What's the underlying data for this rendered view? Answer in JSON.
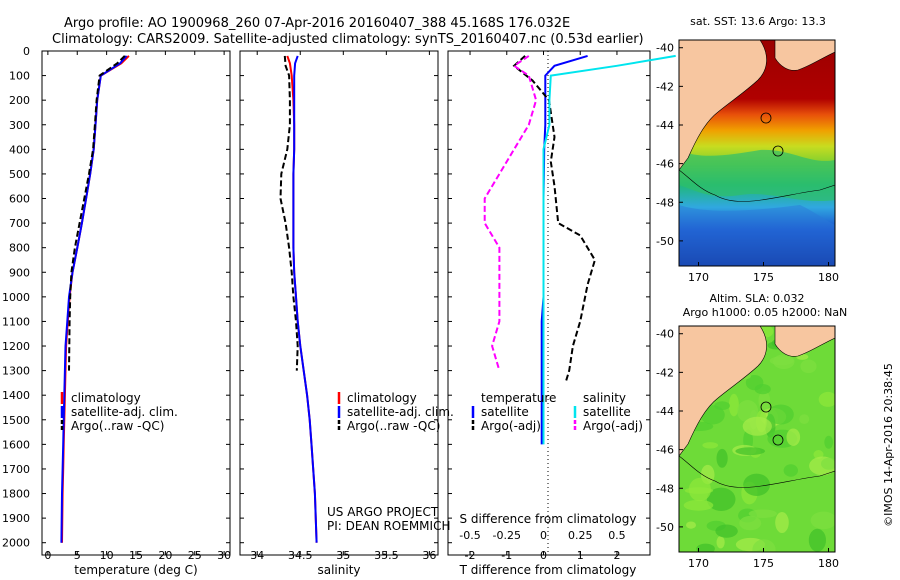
{
  "title": {
    "line1": "Argo profile: AO 1900968_260 07-Apr-2016 20160407_388 45.168S 176.032E",
    "line2": "Climatology: CARS2009. Satellite-adjusted climatology: synTS_20160407.nc (0.53d earlier)"
  },
  "colors": {
    "clim": "#ff0000",
    "sat": "#0000ff",
    "argo": "#000000",
    "sal_sat": "#00e5ee",
    "sal_argo": "#ff00ff",
    "land": "#f7c6a0"
  },
  "credits": {
    "project": "US ARGO PROJECT",
    "pi": "PI: DEAN ROEMMICH",
    "imos": "©IMOS 14-Apr-2016 20:38:45"
  },
  "chart_data": [
    {
      "type": "line",
      "id": "temperature",
      "xlabel": "temperature (deg C)",
      "ylabel": "",
      "xlim": [
        -1,
        31
      ],
      "ylim": [
        2050,
        0
      ],
      "xticks": [
        "0",
        "5",
        "10",
        "15",
        "20",
        "25",
        "30"
      ],
      "yticks": [
        "0",
        "100",
        "200",
        "300",
        "400",
        "500",
        "600",
        "700",
        "800",
        "900",
        "1000",
        "1100",
        "1200",
        "1300",
        "1400",
        "1500",
        "1600",
        "1700",
        "1800",
        "1900",
        "2000"
      ],
      "legend": [
        "climatology",
        "satellite-adj. clim.",
        "Argo(..raw -QC)"
      ],
      "series": [
        {
          "name": "climatology",
          "color": "#ff0000",
          "x": [
            13.8,
            12.5,
            9.0,
            8.4,
            8.1,
            7.8,
            7.2,
            6.5,
            5.8,
            5.0,
            4.2,
            3.7,
            3.4,
            3.1,
            3.0,
            2.9,
            2.8,
            2.7,
            2.6,
            2.5,
            2.4
          ],
          "y": [
            20,
            50,
            100,
            200,
            300,
            400,
            500,
            600,
            700,
            800,
            900,
            1000,
            1100,
            1200,
            1300,
            1400,
            1500,
            1600,
            1700,
            1800,
            2000
          ]
        },
        {
          "name": "satellite-adj. clim.",
          "color": "#0000ff",
          "x": [
            13.4,
            12.3,
            9.0,
            8.4,
            8.1,
            7.8,
            7.2,
            6.5,
            5.8,
            5.0,
            4.2,
            3.6,
            3.3,
            3.0,
            2.9,
            2.8,
            2.7,
            2.6,
            2.5,
            2.4,
            2.3
          ],
          "y": [
            20,
            50,
            100,
            200,
            300,
            400,
            500,
            600,
            700,
            800,
            900,
            1000,
            1100,
            1200,
            1300,
            1400,
            1500,
            1600,
            1700,
            1800,
            2000
          ]
        },
        {
          "name": "Argo(..raw -QC)",
          "color": "#000000",
          "dash": true,
          "x": [
            13.1,
            11.8,
            8.8,
            8.3,
            8.0,
            7.7,
            7.0,
            6.2,
            5.4,
            4.6,
            4.0,
            3.8,
            3.7,
            3.6
          ],
          "y": [
            20,
            50,
            100,
            200,
            300,
            400,
            500,
            600,
            700,
            800,
            900,
            1000,
            1100,
            1300
          ]
        }
      ]
    },
    {
      "type": "line",
      "id": "salinity",
      "xlabel": "salinity",
      "ylabel": "",
      "xlim": [
        33.8,
        36.1
      ],
      "ylim": [
        2050,
        0
      ],
      "xticks": [
        "34",
        "34.5",
        "35",
        "35.5",
        "36"
      ],
      "legend": [
        "climatology",
        "satellite-adj. clim.",
        "Argo(..raw -QC)"
      ],
      "series": [
        {
          "name": "climatology",
          "color": "#ff0000",
          "x": [
            34.35,
            34.38,
            34.4,
            34.42,
            34.43,
            34.43,
            34.42,
            34.42,
            34.42,
            34.42,
            34.43,
            34.45,
            34.47,
            34.5,
            34.54,
            34.58,
            34.61,
            34.63,
            34.65,
            34.67,
            34.69
          ],
          "y": [
            20,
            50,
            100,
            200,
            300,
            400,
            500,
            600,
            700,
            800,
            900,
            1000,
            1100,
            1200,
            1300,
            1400,
            1500,
            1600,
            1700,
            1800,
            2000
          ]
        },
        {
          "name": "satellite-adj. clim.",
          "color": "#0000ff",
          "x": [
            34.47,
            34.44,
            34.43,
            34.43,
            34.43,
            34.43,
            34.42,
            34.42,
            34.42,
            34.42,
            34.43,
            34.45,
            34.47,
            34.5,
            34.54,
            34.58,
            34.61,
            34.63,
            34.65,
            34.67,
            34.69
          ],
          "y": [
            20,
            50,
            100,
            200,
            300,
            400,
            500,
            600,
            700,
            800,
            900,
            1000,
            1100,
            1200,
            1300,
            1400,
            1500,
            1600,
            1700,
            1800,
            2000
          ]
        },
        {
          "name": "Argo(..raw -QC)",
          "color": "#000000",
          "dash": true,
          "x": [
            34.32,
            34.33,
            34.37,
            34.38,
            34.38,
            34.35,
            34.28,
            34.27,
            34.33,
            34.37,
            34.4,
            34.42,
            34.45,
            34.47,
            34.46
          ],
          "y": [
            20,
            60,
            100,
            200,
            300,
            400,
            500,
            600,
            700,
            800,
            900,
            1000,
            1100,
            1200,
            1300
          ]
        }
      ]
    },
    {
      "type": "line",
      "id": "differences",
      "xlabel": "T difference from climatology",
      "xlabel2": "S difference from climatology",
      "xlim": [
        -2.6,
        2.9
      ],
      "ylim": [
        2050,
        0
      ],
      "xticks": [
        "-2",
        "-1",
        "0",
        "1",
        "2"
      ],
      "xticks2": [
        "-0.5",
        "-0.25",
        "0",
        "0.25",
        "0.5"
      ],
      "legend_headers": [
        "temperature",
        "salinity"
      ],
      "legend": [
        "satellite",
        "Argo(-adj)",
        "satellite",
        "Argo(-adj)"
      ],
      "series": [
        {
          "name": "T satellite",
          "color": "#0000ff",
          "x": [
            1.2,
            0.3,
            0.05,
            0.05,
            0.05,
            0.02,
            0.01,
            0.0,
            0.0,
            0.0,
            0.0,
            0.0,
            -0.05,
            -0.05,
            -0.05,
            -0.05
          ],
          "y": [
            20,
            60,
            100,
            200,
            300,
            400,
            500,
            600,
            700,
            800,
            900,
            1000,
            1100,
            1200,
            1400,
            1600
          ]
        },
        {
          "name": "T Argo(-adj)",
          "color": "#000000",
          "dash": true,
          "x": [
            -0.5,
            -0.8,
            -0.3,
            0.15,
            0.3,
            0.2,
            0.3,
            0.4,
            1.0,
            1.4,
            1.2,
            1.0,
            0.8,
            0.7,
            0.6
          ],
          "y": [
            20,
            60,
            120,
            200,
            350,
            450,
            550,
            700,
            750,
            850,
            950,
            1100,
            1200,
            1300,
            1350
          ]
        },
        {
          "name": "S satellite",
          "color": "#00e5ee",
          "x": [
            0.9,
            0.5,
            0.05,
            0.04,
            0.04,
            0.0,
            0.0,
            0.0,
            0.0,
            0.0,
            0.0,
            0.0,
            0.0,
            0.0,
            0.0,
            0.0
          ],
          "y": [
            20,
            60,
            100,
            200,
            300,
            400,
            500,
            600,
            700,
            800,
            900,
            1000,
            1100,
            1200,
            1400,
            1600
          ]
        },
        {
          "name": "S Argo(-adj)",
          "color": "#ff00ff",
          "dash": true,
          "x": [
            -0.1,
            -0.2,
            -0.1,
            -0.05,
            -0.1,
            -0.2,
            -0.3,
            -0.4,
            -0.4,
            -0.3,
            -0.3,
            -0.3,
            -0.3,
            -0.35,
            -0.3
          ],
          "y": [
            20,
            60,
            100,
            200,
            300,
            400,
            500,
            600,
            700,
            800,
            900,
            1000,
            1100,
            1200,
            1300
          ]
        }
      ]
    },
    {
      "type": "heatmap",
      "id": "sst-map",
      "title": "sat. SST: 13.6 Argo: 13.3",
      "xticks": [
        "170",
        "175",
        "180"
      ],
      "yticks": [
        "-40",
        "-42",
        "-44",
        "-46",
        "-48",
        "-50"
      ],
      "xlim": [
        168.5,
        180.5
      ],
      "ylim": [
        -51.3,
        -39.6
      ],
      "argo_position": [
        176.032,
        -45.168
      ]
    },
    {
      "type": "heatmap",
      "id": "sla-map",
      "title": "Altim. SLA: 0.032",
      "title2": "Argo h1000: 0.05 h2000: NaN",
      "xticks": [
        "170",
        "175",
        "180"
      ],
      "yticks": [
        "-40",
        "-42",
        "-44",
        "-46",
        "-48",
        "-50"
      ],
      "xlim": [
        168.5,
        180.5
      ],
      "ylim": [
        -51.3,
        -39.6
      ],
      "argo_position": [
        176.032,
        -45.168
      ]
    }
  ]
}
